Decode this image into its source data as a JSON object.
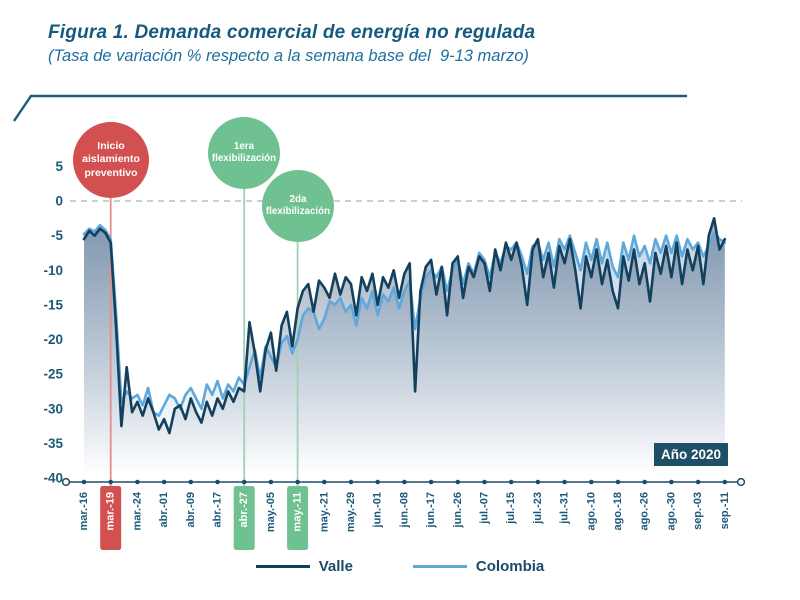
{
  "colors": {
    "title": "#175a80",
    "subtitle": "#1f6f9c",
    "axis_text": "#1b5a7a",
    "axis_line": "#1e4d68",
    "zero_dashed": "#bdbdbd",
    "red": "#d25150",
    "red_tail": "#e2908d",
    "green": "#6fc191",
    "green_tail": "#9dd2b3",
    "badge_bg": "#1d4f66",
    "deco_line": "#1e5a7d"
  },
  "chart_data": {
    "type": "line",
    "title": "Figura 1. Demanda comercial de energía no regulada",
    "subtitle": "(Tasa de variación % respecto a la semana base del  9-13 marzo)",
    "ylabel": "",
    "xlabel": "",
    "ylim": [
      -40,
      5
    ],
    "y_ticks": [
      5,
      0,
      -5,
      -10,
      -15,
      -20,
      -25,
      -30,
      -35,
      -40
    ],
    "zero_reference_line": 0,
    "grid": "dashed line at 0 only",
    "legend_position": "bottom-center",
    "year_badge": "Año 2020",
    "points_per_tick_interval": 5,
    "x_ticks": [
      {
        "label": "mar.-16",
        "hl": ""
      },
      {
        "label": "mar.-19",
        "hl": "red"
      },
      {
        "label": "mar.-24",
        "hl": ""
      },
      {
        "label": "abr.-01",
        "hl": ""
      },
      {
        "label": "abr.-09",
        "hl": ""
      },
      {
        "label": "abr.-17",
        "hl": ""
      },
      {
        "label": "abr.-27",
        "hl": "green"
      },
      {
        "label": "may.-05",
        "hl": ""
      },
      {
        "label": "may.-11",
        "hl": "green"
      },
      {
        "label": "may.-21",
        "hl": ""
      },
      {
        "label": "may.-29",
        "hl": ""
      },
      {
        "label": "jun.-01",
        "hl": ""
      },
      {
        "label": "jun.-08",
        "hl": ""
      },
      {
        "label": "jun.-17",
        "hl": ""
      },
      {
        "label": "jun.-26",
        "hl": ""
      },
      {
        "label": "jul.-07",
        "hl": ""
      },
      {
        "label": "jul.-15",
        "hl": ""
      },
      {
        "label": "jul.-23",
        "hl": ""
      },
      {
        "label": "jul.-31",
        "hl": ""
      },
      {
        "label": "ago.-10",
        "hl": ""
      },
      {
        "label": "ago.-18",
        "hl": ""
      },
      {
        "label": "ago.-26",
        "hl": ""
      },
      {
        "label": "ago.-30",
        "hl": ""
      },
      {
        "label": "sep.-03",
        "hl": ""
      },
      {
        "label": "sep.-11",
        "hl": ""
      }
    ],
    "series": [
      {
        "name": "Valle",
        "color": "#12405d",
        "values": [
          -5.5,
          -4.3,
          -5.0,
          -4.0,
          -4.6,
          -6.0,
          -18,
          -32.5,
          -24,
          -30.5,
          -29,
          -31,
          -28.5,
          -30.5,
          -33,
          -31.5,
          -33.5,
          -30,
          -29.5,
          -31.5,
          -28.5,
          -30.5,
          -32,
          -29,
          -31,
          -28.5,
          -30,
          -27.5,
          -29,
          -27,
          -27.5,
          -17.5,
          -22,
          -27.5,
          -21.5,
          -19,
          -24.5,
          -18,
          -16,
          -21,
          -15.5,
          -13,
          -12,
          -16,
          -11.5,
          -12.5,
          -14,
          -10.5,
          -13.5,
          -11,
          -12,
          -16.5,
          -11,
          -13,
          -10.5,
          -15,
          -11,
          -12.5,
          -10,
          -14,
          -10.5,
          -9,
          -27.5,
          -13,
          -9.5,
          -8.5,
          -13.5,
          -9.5,
          -16.5,
          -9,
          -8,
          -14,
          -9.5,
          -11,
          -8,
          -9,
          -13,
          -7,
          -10,
          -6,
          -8.5,
          -6,
          -9.5,
          -15,
          -7,
          -5.5,
          -11,
          -7.5,
          -12.5,
          -6.5,
          -9,
          -5.5,
          -10,
          -15.5,
          -8,
          -11,
          -7,
          -12,
          -8.5,
          -13,
          -15.5,
          -8,
          -11.5,
          -7,
          -12,
          -9,
          -14.5,
          -7.5,
          -10.5,
          -6.5,
          -11,
          -6,
          -12,
          -7,
          -10,
          -6.5,
          -12,
          -5,
          -2.5,
          -7,
          -5.5
        ]
      },
      {
        "name": "Colombia",
        "color": "#5fa8dc",
        "values": [
          -4.8,
          -4.0,
          -4.4,
          -3.5,
          -4.2,
          -5.5,
          -16,
          -29,
          -27.5,
          -28.5,
          -28,
          -29.5,
          -27,
          -30.5,
          -31,
          -29.5,
          -28,
          -28.5,
          -30,
          -28,
          -27,
          -28.5,
          -30,
          -26.5,
          -28,
          -26,
          -28.5,
          -26.5,
          -27.5,
          -25.5,
          -26.5,
          -24,
          -21.5,
          -25.5,
          -21,
          -22.5,
          -24,
          -20.5,
          -19.5,
          -22,
          -20,
          -16.5,
          -15.5,
          -16,
          -18.5,
          -17,
          -14.5,
          -15,
          -14,
          -16,
          -15,
          -18,
          -14,
          -15.5,
          -13,
          -16.5,
          -13.5,
          -14.5,
          -12.5,
          -15.5,
          -13,
          -11.5,
          -18.5,
          -14,
          -11,
          -10,
          -11,
          -9.5,
          -13,
          -10,
          -8.5,
          -12,
          -9,
          -10.5,
          -7.5,
          -8.5,
          -11,
          -7.5,
          -9,
          -6.5,
          -7,
          -6,
          -8,
          -10.5,
          -6.5,
          -6,
          -8.5,
          -6,
          -9.5,
          -5.5,
          -7,
          -5,
          -7.5,
          -10,
          -6,
          -8.5,
          -5.5,
          -9,
          -6,
          -9.5,
          -11,
          -6,
          -8.5,
          -5,
          -8,
          -6.5,
          -9,
          -5.5,
          -7.5,
          -5,
          -7.5,
          -5,
          -8,
          -5.5,
          -7,
          -6,
          -8,
          -6.5,
          -4.5,
          -5.5,
          -6
        ]
      }
    ],
    "annotations": [
      {
        "id": "lockdown",
        "text": "Inicio\naislamiento\npreventivo",
        "color": "#d25150",
        "tail_color": "#e2908d",
        "tick_label": "mar.-19",
        "tick_index": 1
      },
      {
        "id": "flex1",
        "text": "1era\nflexibilización",
        "color": "#6fc191",
        "tail_color": "#9dd2b3",
        "tick_label": "abr.-27",
        "tick_index": 6
      },
      {
        "id": "flex2",
        "text": "2da\nflexibilización",
        "color": "#6fc191",
        "tail_color": "#9dd2b3",
        "tick_label": "may.-11",
        "tick_index": 8
      }
    ]
  }
}
